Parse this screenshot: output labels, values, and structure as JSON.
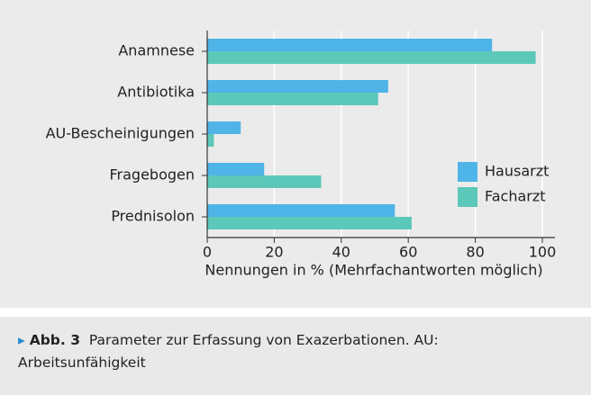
{
  "chart_data": {
    "type": "bar",
    "orientation": "horizontal",
    "categories": [
      "Anamnese",
      "Antibiotika",
      "AU-Bescheinigungen",
      "Fragebogen",
      "Prednisolon"
    ],
    "series": [
      {
        "name": "Hausarzt",
        "color": "#4fb4e8",
        "values": [
          85,
          54,
          10,
          17,
          56
        ]
      },
      {
        "name": "Facharzt",
        "color": "#5cc8b9",
        "values": [
          98,
          51,
          2,
          34,
          61
        ]
      }
    ],
    "xlim": [
      0,
      100
    ],
    "xticks": [
      0,
      20,
      40,
      60,
      80,
      100
    ],
    "xlabel": "Nennungen in % (Mehrfachantworten möglich)",
    "grid": true,
    "legend": "center right"
  },
  "caption": {
    "label": "Abb. 3",
    "text": "Parameter zur Erfassung von Exazerbationen. AU: Arbeitsunfähigkeit"
  }
}
